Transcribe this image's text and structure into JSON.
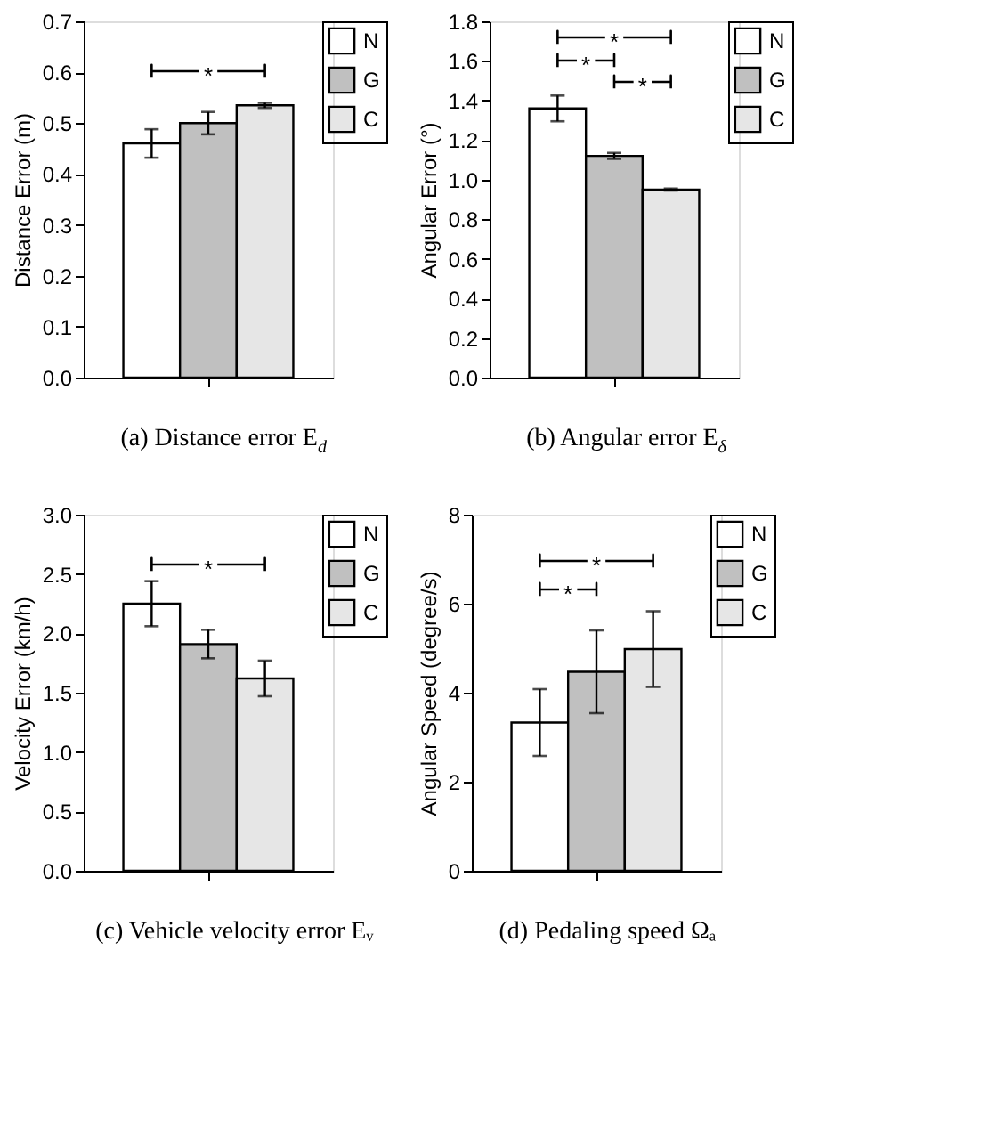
{
  "chart_data": [
    {
      "type": "bar",
      "title": "(a) Distance error E$_{d}$",
      "ylabel": "Distance Error (m)",
      "categories": [
        null
      ],
      "legend": "top right",
      "grid": false,
      "series": [
        {
          "name": "N",
          "color": "#ffffff",
          "values": [
            0.46
          ],
          "errors": [
            0.028
          ]
        },
        {
          "name": "G",
          "color": "#c0c0c0",
          "values": [
            0.5
          ],
          "errors": [
            0.022
          ]
        },
        {
          "name": "C",
          "color": "#e6e6e6",
          "values": [
            0.535
          ],
          "errors": [
            0.005
          ]
        }
      ],
      "ylim": [
        0,
        0.7
      ],
      "yticks": [
        {
          "value": 0,
          "label": "0.0"
        },
        {
          "value": 0.1,
          "label": "0.1"
        },
        {
          "value": 0.2,
          "label": "0.2"
        },
        {
          "value": 0.3,
          "label": "0.3"
        },
        {
          "value": 0.4,
          "label": "0.4"
        },
        {
          "value": 0.5,
          "label": "0.5"
        },
        {
          "value": 0.6,
          "label": "0.6"
        },
        {
          "value": 0.7,
          "label": "0.7"
        }
      ],
      "annotations": [
        "*"
      ]
    },
    {
      "type": "bar",
      "title": "(b) Angular error E$_{δ}$",
      "ylabel": "Angular Error (°)",
      "categories": [
        null
      ],
      "legend": "top right",
      "grid": false,
      "series": [
        {
          "name": "N",
          "color": "#ffffff",
          "values": [
            1.36
          ],
          "errors": [
            0.065
          ]
        },
        {
          "name": "G",
          "color": "#c0c0c0",
          "values": [
            1.12
          ],
          "errors": [
            0.015
          ]
        },
        {
          "name": "C",
          "color": "#e6e6e6",
          "values": [
            0.95
          ],
          "errors": [
            0.005
          ]
        }
      ],
      "ylim": [
        0,
        1.8
      ],
      "yticks": [
        {
          "value": 0,
          "label": "0.0"
        },
        {
          "value": 0.2,
          "label": "0.2"
        },
        {
          "value": 0.4,
          "label": "0.4"
        },
        {
          "value": 0.6,
          "label": "0.6"
        },
        {
          "value": 0.8,
          "label": "0.8"
        },
        {
          "value": 1,
          "label": "1.0"
        },
        {
          "value": 1.2,
          "label": "1.2"
        },
        {
          "value": 1.4,
          "label": "1.4"
        },
        {
          "value": 1.6,
          "label": "1.6"
        },
        {
          "value": 1.8,
          "label": "1.8"
        }
      ],
      "annotations": [
        "*",
        "*",
        "*"
      ]
    },
    {
      "type": "bar",
      "title": "(c) Vehicle velocity error Eᵥ",
      "ylabel": "Velocity Error (km/h)",
      "categories": [
        null
      ],
      "legend": "top right",
      "grid": false,
      "series": [
        {
          "name": "N",
          "color": "#ffffff",
          "values": [
            2.25
          ],
          "errors": [
            0.19
          ]
        },
        {
          "name": "G",
          "color": "#c0c0c0",
          "values": [
            1.91
          ],
          "errors": [
            0.12
          ]
        },
        {
          "name": "C",
          "color": "#e6e6e6",
          "values": [
            1.62
          ],
          "errors": [
            0.15
          ]
        }
      ],
      "ylim": [
        0,
        3
      ],
      "yticks": [
        {
          "value": 0,
          "label": "0.0"
        },
        {
          "value": 0.5,
          "label": "0.5"
        },
        {
          "value": 1,
          "label": "1.0"
        },
        {
          "value": 1.5,
          "label": "1.5"
        },
        {
          "value": 2,
          "label": "2.0"
        },
        {
          "value": 2.5,
          "label": "2.5"
        },
        {
          "value": 3,
          "label": "3.0"
        }
      ],
      "annotations": [
        "*"
      ]
    },
    {
      "type": "bar",
      "title": "(d) Pedaling speed Ωₐ",
      "ylabel": "Angular Speed (degree/s)",
      "categories": [
        null
      ],
      "legend": "top right",
      "grid": false,
      "series": [
        {
          "name": "N",
          "color": "#ffffff",
          "values": [
            3.33
          ],
          "errors": [
            0.75
          ]
        },
        {
          "name": "G",
          "color": "#c0c0c0",
          "values": [
            4.47
          ],
          "errors": [
            0.93
          ]
        },
        {
          "name": "C",
          "color": "#e6e6e6",
          "values": [
            4.98
          ],
          "errors": [
            0.85
          ]
        }
      ],
      "ylim": [
        0,
        8
      ],
      "yticks": [
        0,
        2,
        4,
        6,
        8
      ],
      "annotations": [
        "*",
        "*"
      ]
    }
  ]
}
